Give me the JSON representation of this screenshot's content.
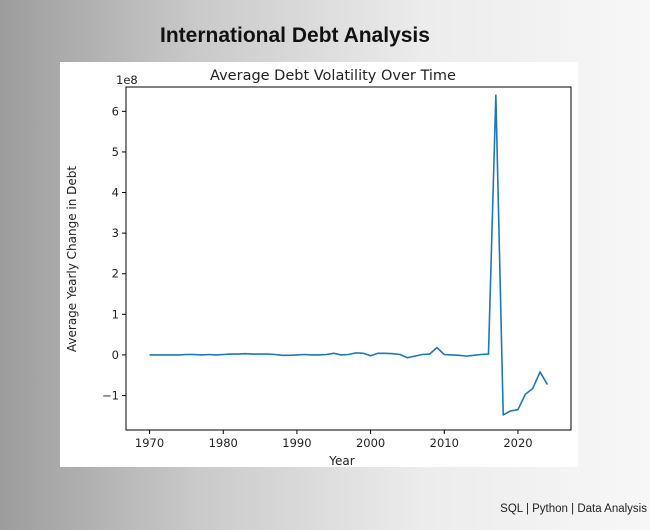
{
  "header": {
    "title": "International Debt Analysis"
  },
  "footer": {
    "text": "SQL | Python | Data Analysis"
  },
  "chart_data": {
    "type": "line",
    "title": "Average Debt Volatility Over Time",
    "xlabel": "Year",
    "ylabel": "Average Yearly Change in Debt",
    "y_scale_label": "1e8",
    "xlim": [
      1966.8,
      2027.2
    ],
    "ylim": [
      -1.85,
      6.6
    ],
    "x_ticks": [
      1970,
      1980,
      1990,
      2000,
      2010,
      2020
    ],
    "y_ticks": [
      -1,
      0,
      1,
      2,
      3,
      4,
      5,
      6
    ],
    "y_tick_labels": [
      "−1",
      "0",
      "1",
      "2",
      "3",
      "4",
      "5",
      "6"
    ],
    "grid": false,
    "line_color": "#1f77b4",
    "series": [
      {
        "x": [
          1970,
          1971,
          1972,
          1973,
          1974,
          1975,
          1976,
          1977,
          1978,
          1979,
          1980,
          1981,
          1982,
          1983,
          1984,
          1985,
          1986,
          1987,
          1988,
          1989,
          1990,
          1991,
          1992,
          1993,
          1994,
          1995,
          1996,
          1997,
          1998,
          1999,
          2000,
          2001,
          2002,
          2003,
          2004,
          2005,
          2006,
          2007,
          2008,
          2009,
          2010,
          2011,
          2012,
          2013,
          2014,
          2015,
          2016,
          2017,
          2018,
          2019,
          2020,
          2021,
          2022,
          2023,
          2024
        ],
        "values": [
          0.0,
          0.0,
          0.0,
          0.0,
          0.0,
          0.01,
          0.01,
          0.0,
          0.01,
          0.0,
          0.01,
          0.02,
          0.02,
          0.03,
          0.02,
          0.02,
          0.02,
          0.01,
          -0.01,
          -0.01,
          0.0,
          0.01,
          0.0,
          0.0,
          0.01,
          0.04,
          0.0,
          0.01,
          0.05,
          0.04,
          -0.02,
          0.04,
          0.04,
          0.03,
          0.01,
          -0.07,
          -0.03,
          0.01,
          0.02,
          0.18,
          0.01,
          0.0,
          -0.01,
          -0.03,
          -0.01,
          0.01,
          0.02,
          6.4,
          -1.48,
          -1.38,
          -1.35,
          -0.97,
          -0.83,
          -0.42,
          -0.73
        ]
      }
    ]
  }
}
